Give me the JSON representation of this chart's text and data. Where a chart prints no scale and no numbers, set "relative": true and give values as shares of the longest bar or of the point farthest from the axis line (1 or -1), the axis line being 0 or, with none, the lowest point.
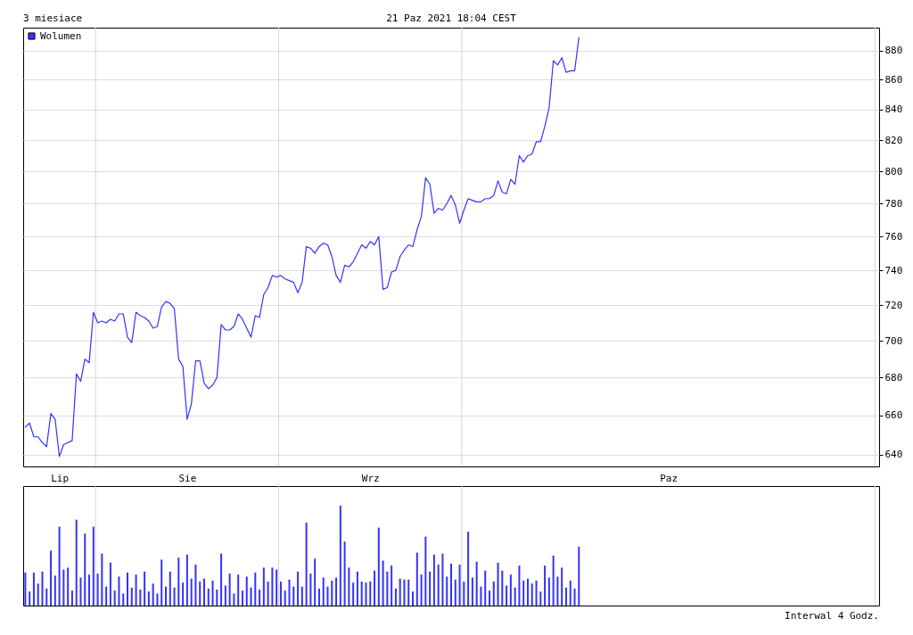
{
  "chart_data": [
    {
      "type": "line",
      "title": "3 miesiace",
      "annotations": [
        "21 Paz 2021 18:04 CEST"
      ],
      "categories": [
        null,
        null,
        null,
        null,
        null,
        null,
        null,
        null,
        "Lip",
        null,
        null,
        null,
        null,
        null,
        null,
        null,
        null,
        null,
        null,
        null,
        null,
        null,
        null,
        null,
        null,
        null,
        null,
        null,
        null,
        null,
        null,
        null,
        null,
        null,
        null,
        null,
        null,
        null,
        "Sie",
        null,
        null,
        null,
        null,
        null,
        null,
        null,
        null,
        null,
        null,
        null,
        null,
        null,
        null,
        null,
        null,
        null,
        null,
        null,
        null,
        null,
        null,
        null,
        null,
        null,
        null,
        null,
        null,
        null,
        null,
        null,
        null,
        null,
        null,
        null,
        null,
        null,
        null,
        null,
        null,
        null,
        null,
        "Wrz",
        null,
        null,
        null,
        null,
        null,
        null,
        null,
        null,
        null,
        null,
        null,
        null,
        null,
        null,
        null,
        null,
        null,
        null,
        null,
        null,
        null,
        null,
        null,
        null,
        null,
        null,
        null,
        null,
        null,
        null,
        null,
        null,
        null,
        null,
        null,
        null,
        null,
        null,
        null,
        null,
        null,
        null,
        null,
        null,
        null,
        null,
        null,
        null,
        null,
        null,
        null,
        null,
        null,
        null,
        null,
        null,
        null,
        null,
        null,
        null,
        null,
        null,
        null,
        null,
        null,
        null,
        null,
        null,
        null,
        "Paz",
        null,
        null,
        null,
        null,
        null,
        null,
        null,
        null,
        null,
        null,
        null,
        null,
        null,
        null,
        null,
        null,
        null,
        null,
        null,
        null,
        null,
        null,
        null,
        null,
        null,
        null,
        null,
        null,
        null,
        null,
        null,
        null,
        null,
        null,
        null,
        null,
        null,
        null,
        null,
        null,
        null,
        null,
        null,
        null,
        null,
        null,
        null,
        null,
        null
      ],
      "series": [
        {
          "color": "#3333ff",
          "values": [
            654,
            656,
            649,
            649,
            646,
            644,
            661,
            658,
            639,
            645,
            646,
            647,
            682,
            678,
            690,
            688,
            716,
            710,
            711,
            710,
            712,
            711,
            715,
            715,
            702,
            699,
            716,
            714,
            713,
            711,
            707,
            708,
            719,
            722,
            721,
            718,
            690,
            686,
            658,
            666,
            689,
            689,
            677,
            674,
            676,
            680,
            709,
            706,
            706,
            708,
            715,
            712,
            707,
            702,
            714,
            713,
            726,
            730,
            737,
            736,
            737,
            735,
            734,
            733,
            727,
            733,
            754,
            753,
            750,
            754,
            756,
            755,
            748,
            737,
            733,
            743,
            742,
            745,
            750,
            755,
            753,
            757,
            755,
            760,
            729,
            730,
            739,
            740,
            748,
            752,
            755,
            754,
            764,
            772,
            796,
            792,
            774,
            777,
            776,
            780,
            785,
            779,
            768,
            776,
            783,
            782,
            781,
            781,
            783,
            783,
            785,
            794,
            787,
            786,
            795,
            792,
            810,
            806,
            810,
            811,
            819,
            819,
            829,
            841,
            873,
            870,
            875,
            865,
            866,
            866,
            889,
            null,
            null,
            null,
            null,
            null,
            null,
            null,
            null,
            null,
            null,
            null,
            null,
            null,
            null,
            null,
            null,
            null,
            null,
            null,
            null,
            null,
            null,
            null,
            null,
            null,
            null,
            null,
            null,
            null,
            null,
            null,
            null,
            null,
            null,
            null,
            null,
            null,
            null,
            null,
            null,
            null,
            null,
            null,
            null,
            null,
            null,
            null,
            null,
            null,
            null,
            null,
            null,
            null,
            null,
            null,
            null,
            null,
            null,
            null,
            null,
            null,
            null,
            null,
            null,
            null,
            null,
            null,
            null,
            null,
            null
          ]
        }
      ],
      "log": true,
      "ylim": [
        634,
        896
      ],
      "yticks": [
        640,
        660,
        680,
        700,
        720,
        740,
        760,
        780,
        800,
        820,
        840,
        860,
        880
      ],
      "grid": "y"
    },
    {
      "type": "bar",
      "relative": true,
      "legend": "top left",
      "annotations": [
        "Interwal 4 Godz."
      ],
      "categories": [
        null,
        null,
        null,
        null,
        null,
        null,
        null,
        null,
        null,
        null,
        null,
        null,
        null,
        null,
        null,
        null,
        null,
        null,
        null,
        null,
        null,
        null,
        null,
        null,
        null,
        null,
        null,
        null,
        null,
        null,
        null,
        null,
        null,
        null,
        null,
        null,
        null,
        null,
        null,
        null,
        null,
        null,
        null,
        null,
        null,
        null,
        null,
        null,
        null,
        null,
        null,
        null,
        null,
        null,
        null,
        null,
        null,
        null,
        null,
        null,
        null,
        null,
        null,
        null,
        null,
        null,
        null,
        null,
        null,
        null,
        null,
        null,
        null,
        null,
        null,
        null,
        null,
        null,
        null,
        null,
        null,
        null,
        null,
        null,
        null,
        null,
        null,
        null,
        null,
        null,
        null,
        null,
        null,
        null,
        null,
        null,
        null,
        null,
        null,
        null,
        null,
        null,
        null,
        null,
        null,
        null,
        null,
        null,
        null,
        null,
        null,
        null,
        null,
        null,
        null,
        null,
        null,
        null,
        null,
        null,
        null,
        null,
        null,
        null,
        null,
        null,
        null,
        null,
        null,
        null,
        null,
        null,
        null,
        null,
        null,
        null,
        null,
        null,
        null,
        null,
        null,
        null,
        null,
        null,
        null,
        null,
        null,
        null,
        null,
        null,
        null,
        null,
        null,
        null,
        null,
        null,
        null,
        null,
        null,
        null,
        null,
        null,
        null,
        null,
        null,
        null,
        null,
        null,
        null,
        null,
        null,
        null,
        null,
        null,
        null,
        null,
        null,
        null,
        null,
        null,
        null,
        null,
        null,
        null,
        null,
        null,
        null,
        null,
        null,
        null,
        null,
        null,
        null,
        null,
        null,
        null,
        null,
        null,
        null,
        null,
        null
      ],
      "series": [
        {
          "name": "Wolumen",
          "color": "#3333ff",
          "values": [
            0.33,
            0.14,
            0.33,
            0.22,
            0.34,
            0.17,
            0.55,
            0.3,
            0.79,
            0.36,
            0.38,
            0.15,
            0.86,
            0.28,
            0.72,
            0.31,
            0.79,
            0.32,
            0.52,
            0.19,
            0.43,
            0.15,
            0.29,
            0.12,
            0.33,
            0.18,
            0.31,
            0.16,
            0.34,
            0.14,
            0.22,
            0.12,
            0.46,
            0.19,
            0.34,
            0.18,
            0.48,
            0.23,
            0.51,
            0.27,
            0.41,
            0.24,
            0.27,
            0.17,
            0.25,
            0.16,
            0.52,
            0.2,
            0.32,
            0.12,
            0.31,
            0.15,
            0.29,
            0.18,
            0.33,
            0.16,
            0.38,
            0.24,
            0.38,
            0.36,
            0.24,
            0.15,
            0.26,
            0.19,
            0.34,
            0.19,
            0.83,
            0.32,
            0.47,
            0.17,
            0.28,
            0.19,
            0.25,
            0.28,
            1,
            0.64,
            0.38,
            0.23,
            0.34,
            0.24,
            0.23,
            0.24,
            0.35,
            0.78,
            0.45,
            0.34,
            0.4,
            0.17,
            0.27,
            0.26,
            0.26,
            0.14,
            0.53,
            0.31,
            0.69,
            0.34,
            0.51,
            0.41,
            0.52,
            0.29,
            0.42,
            0.26,
            0.41,
            0.24,
            0.74,
            0.28,
            0.44,
            0.19,
            0.35,
            0.15,
            0.24,
            0.43,
            0.35,
            0.2,
            0.31,
            0.18,
            0.4,
            0.25,
            0.27,
            0.22,
            0.25,
            0.14,
            0.4,
            0.28,
            0.5,
            0.29,
            0.38,
            0.18,
            0.25,
            0.17,
            0.59,
            null,
            null,
            null,
            null,
            null,
            null,
            null,
            null,
            null,
            null,
            null,
            null,
            null,
            null,
            null,
            null,
            null,
            null,
            null,
            null,
            null,
            null,
            null,
            null,
            null,
            null,
            null,
            null,
            null,
            null,
            null,
            null,
            null,
            null,
            null,
            null,
            null,
            null,
            null,
            null,
            null,
            null,
            null,
            null,
            null,
            null,
            null,
            null,
            null,
            null,
            null,
            null,
            null,
            null,
            null,
            null,
            null,
            null,
            null,
            null,
            null,
            null,
            null,
            null,
            null,
            null,
            null,
            null,
            null,
            null
          ]
        }
      ]
    }
  ]
}
